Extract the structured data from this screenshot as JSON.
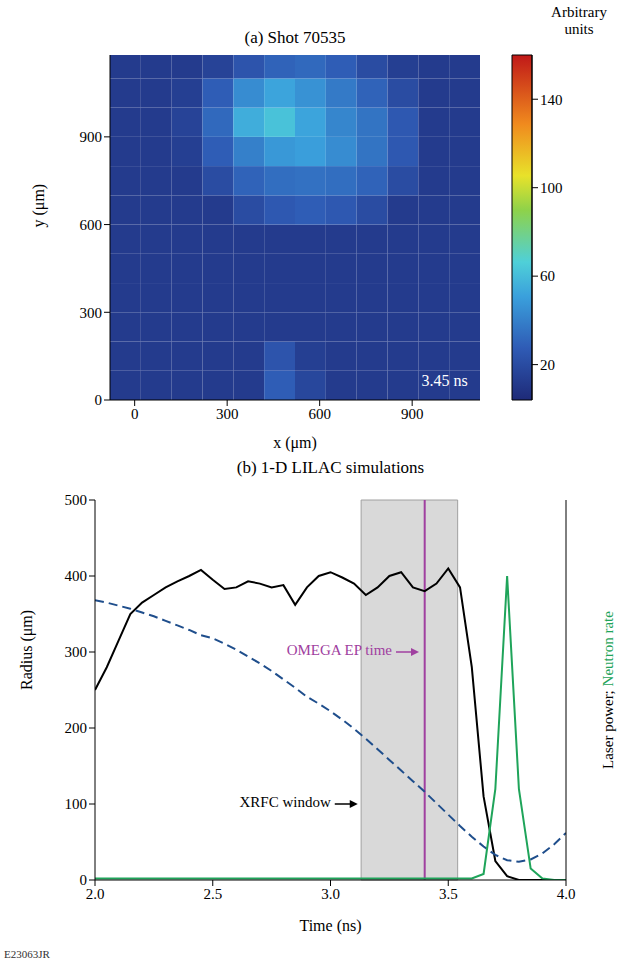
{
  "chart_data": [
    {
      "type": "heatmap",
      "title": "(a) Shot 70535",
      "xlabel": "x (μm)",
      "ylabel": "y (μm)",
      "xlim": [
        -80,
        1120
      ],
      "ylim": [
        0,
        1180
      ],
      "xticks": [
        0,
        300,
        600,
        900
      ],
      "yticks": [
        0,
        300,
        600,
        900
      ],
      "x_edges": [
        -80,
        20,
        120,
        220,
        320,
        420,
        520,
        620,
        720,
        820,
        920,
        1020,
        1120
      ],
      "y_edges": [
        0,
        100,
        200,
        300,
        400,
        500,
        600,
        700,
        800,
        900,
        1000,
        1100,
        1180
      ],
      "cells": [
        [
          12,
          12,
          12,
          12,
          12,
          28,
          18,
          12,
          12,
          12,
          12,
          12
        ],
        [
          12,
          12,
          12,
          12,
          12,
          24,
          14,
          12,
          12,
          12,
          12,
          12
        ],
        [
          12,
          12,
          12,
          12,
          12,
          12,
          12,
          12,
          12,
          12,
          12,
          12
        ],
        [
          12,
          12,
          12,
          12,
          12,
          12,
          12,
          12,
          12,
          12,
          12,
          12
        ],
        [
          12,
          12,
          12,
          12,
          12,
          12,
          12,
          12,
          12,
          12,
          12,
          12
        ],
        [
          12,
          12,
          12,
          12,
          12,
          12,
          12,
          12,
          12,
          12,
          12,
          12
        ],
        [
          12,
          12,
          12,
          12,
          20,
          26,
          28,
          26,
          20,
          12,
          12,
          12
        ],
        [
          12,
          12,
          12,
          20,
          30,
          34,
          35,
          34,
          30,
          20,
          12,
          12
        ],
        [
          12,
          12,
          14,
          28,
          40,
          48,
          50,
          44,
          36,
          26,
          12,
          12
        ],
        [
          12,
          12,
          16,
          32,
          55,
          62,
          52,
          42,
          36,
          26,
          12,
          12
        ],
        [
          12,
          12,
          14,
          28,
          44,
          52,
          46,
          38,
          30,
          20,
          12,
          12
        ],
        [
          12,
          12,
          12,
          16,
          24,
          30,
          32,
          28,
          20,
          14,
          12,
          12
        ]
      ],
      "colorbar": {
        "label": "Arbitrary units",
        "range": [
          4,
          160
        ],
        "ticks": [
          20,
          60,
          100,
          140
        ]
      },
      "annotations": [
        {
          "text": "3.45 ns",
          "x": 1080,
          "y": 60,
          "color": "#ffffff"
        }
      ]
    },
    {
      "type": "line",
      "title": "(b) 1-D LILAC simulations",
      "xlabel": "Time (ns)",
      "ylabel": "Radius (μm)",
      "y2label": [
        {
          "text": "Laser power;",
          "color": "#000000"
        },
        {
          "text": "Neutron rate",
          "color": "#1fa45a"
        }
      ],
      "xlim": [
        2,
        4
      ],
      "xticks": [
        {
          "value": 2,
          "label": "2.0"
        },
        2.5,
        {
          "value": 3,
          "label": "3.0"
        },
        3.5,
        {
          "value": 4,
          "label": "4.0"
        }
      ],
      "ylim": [
        0,
        500
      ],
      "yticks": [
        0,
        100,
        200,
        300,
        400,
        500
      ],
      "y2lim": [
        0,
        500
      ],
      "y2ticks": [],
      "x": [
        2.0,
        2.05,
        2.1,
        2.15,
        2.2,
        2.25,
        2.3,
        2.35,
        2.4,
        2.45,
        2.5,
        2.55,
        2.6,
        2.65,
        2.7,
        2.75,
        2.8,
        2.85,
        2.9,
        2.95,
        3.0,
        3.05,
        3.1,
        3.15,
        3.2,
        3.25,
        3.3,
        3.35,
        3.4,
        3.45,
        3.5,
        3.55,
        3.6,
        3.65,
        3.7,
        3.75,
        3.8,
        3.85,
        3.9,
        3.95,
        4.0
      ],
      "series": [
        {
          "name": "Laser power",
          "color": "#000000",
          "axis": "y2",
          "line_style": "solid",
          "values": [
            250,
            280,
            315,
            350,
            365,
            375,
            385,
            393,
            400,
            408,
            395,
            383,
            385,
            393,
            390,
            385,
            388,
            362,
            385,
            400,
            405,
            398,
            390,
            375,
            385,
            400,
            405,
            385,
            380,
            390,
            410,
            385,
            280,
            110,
            25,
            5,
            0,
            0,
            0,
            0,
            0
          ]
        },
        {
          "name": "Radius",
          "color": "#1f4e8c",
          "line_style": "dashed",
          "values": [
            368,
            365,
            361,
            357,
            352,
            347,
            341,
            335,
            329,
            322,
            318,
            311,
            303,
            294,
            285,
            275,
            264,
            253,
            241,
            232,
            222,
            211,
            199,
            186,
            172,
            158,
            144,
            130,
            116,
            101,
            86,
            71,
            57,
            44,
            33,
            26,
            24,
            27,
            35,
            47,
            62
          ]
        },
        {
          "name": "Neutron rate",
          "color": "#1fa45a",
          "axis": "y2",
          "line_style": "solid",
          "values": [
            2,
            2,
            2,
            2,
            2,
            2,
            2,
            2,
            2,
            2,
            2,
            2,
            2,
            2,
            2,
            2,
            2,
            2,
            2,
            2,
            2,
            2,
            2,
            2,
            2,
            2,
            2,
            2,
            2,
            2,
            2,
            2,
            2,
            8,
            120,
            400,
            120,
            15,
            2,
            0,
            0
          ]
        }
      ],
      "regions": [
        {
          "x1": 3.13,
          "x2": 3.54,
          "color": "#d9d9d9"
        }
      ],
      "vlines": [
        {
          "x": 3.4,
          "color": "#a040a0"
        }
      ],
      "annotations": [
        {
          "text": "OMEGA EP time",
          "x": 3.38,
          "y": 300,
          "color": "#a040a0"
        },
        {
          "text": "XRFC window",
          "x": 3.12,
          "y": 100,
          "color": "#000000"
        }
      ]
    }
  ],
  "footer": "E23063JR"
}
